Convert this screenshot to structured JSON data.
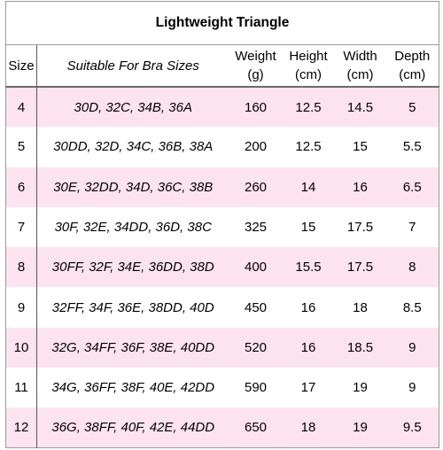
{
  "table": {
    "title": "Lightweight Triangle",
    "header": [
      "Size",
      "Suitable For Bra Sizes",
      "Weight\n(g)",
      "Height\n(cm)",
      "Width\n(cm)",
      "Depth\n(cm)"
    ],
    "rows": [
      [
        "4",
        "30D, 32C, 34B, 36A",
        "160",
        "12.5",
        "14.5",
        "5"
      ],
      [
        "5",
        "30DD, 32D, 34C, 36B, 38A",
        "200",
        "12.5",
        "15",
        "5.5"
      ],
      [
        "6",
        "30E, 32DD, 34D, 36C, 38B",
        "260",
        "14",
        "16",
        "6.5"
      ],
      [
        "7",
        "30F, 32E, 34DD, 36D, 38C",
        "325",
        "15",
        "17.5",
        "7"
      ],
      [
        "8",
        "30FF, 32F, 34E, 36DD, 38D",
        "400",
        "15.5",
        "17.5",
        "8"
      ],
      [
        "9",
        "32FF, 34F, 36E, 38DD, 40D",
        "450",
        "16",
        "18",
        "8.5"
      ],
      [
        "10",
        "32G, 34FF, 36F, 38E, 40DD",
        "520",
        "16",
        "18.5",
        "9"
      ],
      [
        "11",
        "34G, 36FF, 38F, 40E, 42DD",
        "590",
        "17",
        "19",
        "9"
      ],
      [
        "12",
        "36G, 38FF, 40F, 42E, 44DD",
        "650",
        "18",
        "19",
        "9.5"
      ]
    ]
  }
}
